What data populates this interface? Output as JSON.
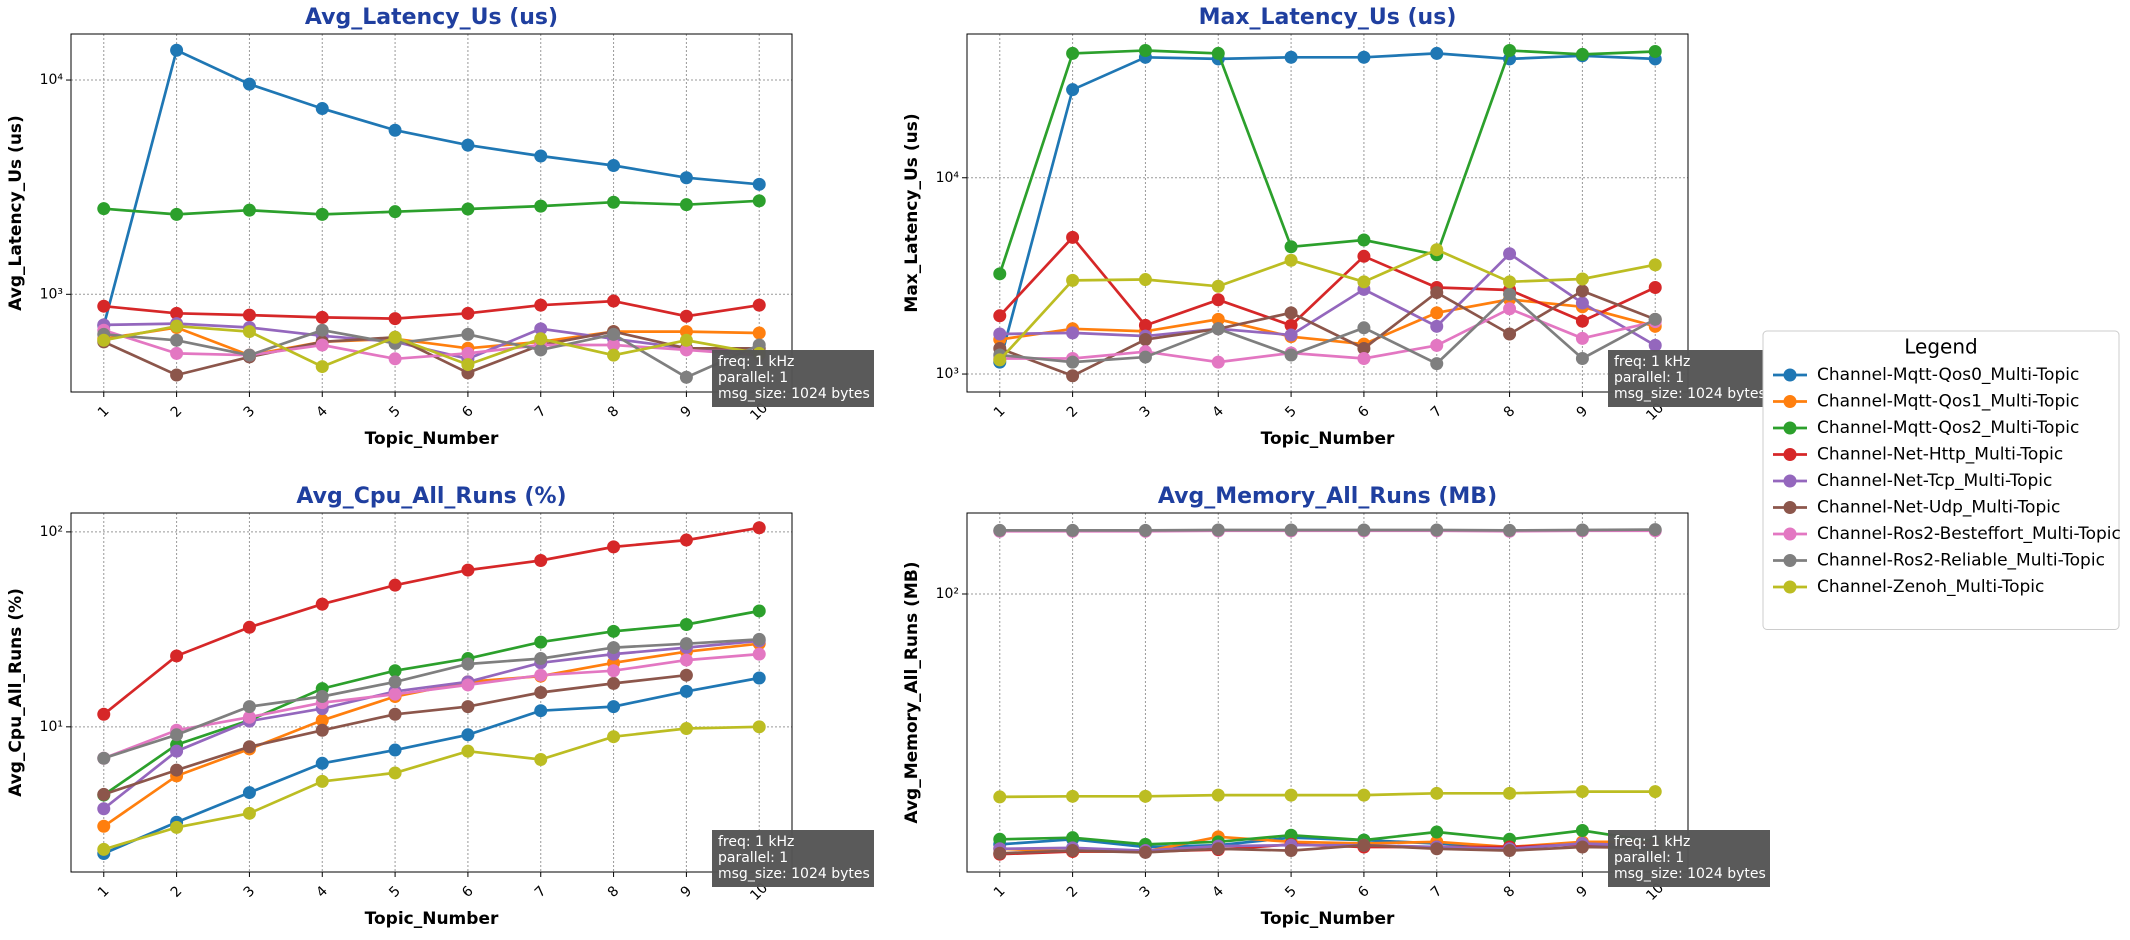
{
  "legend": {
    "title": "Legend",
    "position": "right"
  },
  "chart_data": [
    {
      "type": "line",
      "title": "Avg_Latency_Us  (us)",
      "x_label": "Topic_Number",
      "y_label": "Avg_Latency_Us (us)",
      "categories": [
        "1",
        "2",
        "3",
        "4",
        "5",
        "6",
        "7",
        "8",
        "9",
        "10"
      ],
      "log_y": true,
      "grid": true,
      "ylim": [
        350,
        16400
      ],
      "yticks": [
        {
          "value": 1000,
          "label": "10³"
        },
        {
          "value": 10000,
          "label": "10⁴"
        }
      ],
      "annotation": [
        "freq: 1 kHz",
        "parallel: 1",
        "msg_size: 1024 bytes"
      ],
      "series": [
        {
          "name": "Channel-Mqtt-Qos0_Multi-Topic",
          "color": "#1f77b4",
          "values": [
            715,
            13770,
            9570,
            7360,
            5830,
            4970,
            4420,
            3990,
            3500,
            3260
          ]
        },
        {
          "name": "Channel-Mqtt-Qos1_Multi-Topic",
          "color": "#ff7f0e",
          "values": [
            620,
            700,
            520,
            600,
            620,
            560,
            600,
            670,
            670,
            660
          ]
        },
        {
          "name": "Channel-Mqtt-Qos2_Multi-Topic",
          "color": "#2ca02c",
          "values": [
            2510,
            2360,
            2470,
            2360,
            2430,
            2500,
            2580,
            2690,
            2620,
            2730
          ]
        },
        {
          "name": "Channel-Net-Http_Multi-Topic",
          "color": "#d62728",
          "values": [
            880,
            815,
            800,
            780,
            770,
            815,
            890,
            930,
            790,
            890
          ]
        },
        {
          "name": "Channel-Net-Tcp_Multi-Topic",
          "color": "#9467bd",
          "values": [
            720,
            730,
            700,
            640,
            600,
            500,
            690,
            620,
            560,
            540
          ]
        },
        {
          "name": "Channel-Net-Udp_Multi-Topic",
          "color": "#8c564b",
          "values": [
            600,
            420,
            510,
            600,
            630,
            430,
            580,
            670,
            560,
            560
          ]
        },
        {
          "name": "Channel-Ros2-Besteffort_Multi-Topic",
          "color": "#e377c2",
          "values": [
            680,
            530,
            520,
            580,
            500,
            530,
            580,
            580,
            550,
            520
          ]
        },
        {
          "name": "Channel-Ros2-Reliable_Multi-Topic",
          "color": "#7f7f7f",
          "values": [
            650,
            610,
            520,
            680,
            590,
            650,
            550,
            650,
            410,
            580
          ]
        },
        {
          "name": "Channel-Zenoh_Multi-Topic",
          "color": "#bcbd22",
          "values": [
            610,
            710,
            670,
            460,
            630,
            470,
            620,
            520,
            610,
            530
          ]
        }
      ]
    },
    {
      "type": "line",
      "title": "Max_Latency_Us  (us)",
      "x_label": "Topic_Number",
      "y_label": "Max_Latency_Us (us)",
      "categories": [
        "1",
        "2",
        "3",
        "4",
        "5",
        "6",
        "7",
        "8",
        "9",
        "10"
      ],
      "log_y": true,
      "grid": true,
      "ylim": [
        810,
        54000
      ],
      "yticks": [
        {
          "value": 1000,
          "label": "10³"
        },
        {
          "value": 10000,
          "label": "10⁴"
        }
      ],
      "annotation": [
        "freq: 1 kHz",
        "parallel: 1",
        "msg_size: 1024 bytes"
      ],
      "series": [
        {
          "name": "Channel-Mqtt-Qos0_Multi-Topic",
          "color": "#1f77b4",
          "values": [
            1150,
            28100,
            41100,
            40300,
            41100,
            41100,
            43000,
            40300,
            41800,
            40300
          ]
        },
        {
          "name": "Channel-Mqtt-Qos1_Multi-Topic",
          "color": "#ff7f0e",
          "values": [
            1500,
            1700,
            1650,
            1900,
            1550,
            1420,
            2050,
            2400,
            2200,
            1750
          ]
        },
        {
          "name": "Channel-Mqtt-Qos2_Multi-Topic",
          "color": "#2ca02c",
          "values": [
            3240,
            43000,
            44500,
            43000,
            4450,
            4820,
            4050,
            44500,
            42500,
            44000
          ]
        },
        {
          "name": "Channel-Net-Http_Multi-Topic",
          "color": "#d62728",
          "values": [
            1980,
            4970,
            1770,
            2390,
            1770,
            3980,
            2760,
            2680,
            1860,
            2760
          ]
        },
        {
          "name": "Channel-Net-Tcp_Multi-Topic",
          "color": "#9467bd",
          "values": [
            1600,
            1620,
            1560,
            1700,
            1580,
            2700,
            1750,
            4100,
            2300,
            1400
          ]
        },
        {
          "name": "Channel-Net-Udp_Multi-Topic",
          "color": "#8c564b",
          "values": [
            1350,
            980,
            1500,
            1700,
            2050,
            1350,
            2600,
            1600,
            2650,
            1900
          ]
        },
        {
          "name": "Channel-Ros2-Besteffort_Multi-Topic",
          "color": "#e377c2",
          "values": [
            1200,
            1200,
            1300,
            1150,
            1280,
            1200,
            1400,
            2150,
            1520,
            1850
          ]
        },
        {
          "name": "Channel-Ros2-Reliable_Multi-Topic",
          "color": "#7f7f7f",
          "values": [
            1250,
            1150,
            1220,
            1700,
            1250,
            1720,
            1130,
            2550,
            1200,
            1900
          ]
        },
        {
          "name": "Channel-Zenoh_Multi-Topic",
          "color": "#bcbd22",
          "values": [
            1180,
            3000,
            3030,
            2800,
            3800,
            2950,
            4300,
            2950,
            3050,
            3600
          ]
        }
      ]
    },
    {
      "type": "line",
      "title": "Avg_Cpu_All_Runs  (%)",
      "x_label": "Topic_Number",
      "y_label": "Avg_Cpu_All_Runs (%)",
      "categories": [
        "1",
        "2",
        "3",
        "4",
        "5",
        "6",
        "7",
        "8",
        "9",
        "10"
      ],
      "log_y": true,
      "grid": true,
      "ylim": [
        1.8,
        125
      ],
      "yticks": [
        {
          "value": 10,
          "label": "10¹"
        },
        {
          "value": 100,
          "label": "10²"
        }
      ],
      "annotation": [
        "freq: 1 kHz",
        "parallel: 1",
        "msg_size: 1024 bytes"
      ],
      "series": [
        {
          "name": "Channel-Mqtt-Qos0_Multi-Topic",
          "color": "#1f77b4",
          "values": [
            2.24,
            3.24,
            4.6,
            6.5,
            7.6,
            9.1,
            12.1,
            12.7,
            15.2,
            17.8
          ]
        },
        {
          "name": "Channel-Mqtt-Qos1_Multi-Topic",
          "color": "#ff7f0e",
          "values": [
            3.09,
            5.6,
            7.7,
            10.8,
            14.3,
            17,
            18.2,
            21.3,
            24.3,
            26.7
          ]
        },
        {
          "name": "Channel-Mqtt-Qos2_Multi-Topic",
          "color": "#2ca02c",
          "values": [
            4.47,
            8.1,
            10.8,
            15.7,
            19.4,
            22.4,
            27.2,
            30.9,
            33.5,
            39.3
          ]
        },
        {
          "name": "Channel-Net-Http_Multi-Topic",
          "color": "#d62728",
          "values": [
            11.6,
            23.1,
            32.4,
            42.6,
            53.3,
            63.7,
            71.3,
            83.8,
            90.8,
            105
          ]
        },
        {
          "name": "Channel-Net-Tcp_Multi-Topic",
          "color": "#9467bd",
          "values": [
            3.8,
            7.5,
            10.7,
            12.4,
            15.2,
            17,
            21.3,
            23.6,
            25.5,
            27.6
          ]
        },
        {
          "name": "Channel-Net-Udp_Multi-Topic",
          "color": "#8c564b",
          "values": [
            4.5,
            6.0,
            7.9,
            9.6,
            11.6,
            12.7,
            15,
            16.7,
            18.4,
            null
          ]
        },
        {
          "name": "Channel-Ros2-Besteffort_Multi-Topic",
          "color": "#e377c2",
          "values": [
            6.9,
            9.6,
            11.2,
            13.3,
            14.7,
            16.4,
            18.4,
            19.4,
            22,
            23.6
          ]
        },
        {
          "name": "Channel-Ros2-Reliable_Multi-Topic",
          "color": "#7f7f7f",
          "values": [
            6.9,
            9.1,
            12.7,
            14.3,
            17,
            21,
            22.4,
            25.5,
            26.7,
            28.1
          ]
        },
        {
          "name": "Channel-Zenoh_Multi-Topic",
          "color": "#bcbd22",
          "values": [
            2.35,
            3.05,
            3.6,
            5.25,
            5.8,
            7.5,
            6.8,
            8.9,
            9.8,
            10
          ]
        }
      ]
    },
    {
      "type": "line",
      "title": "Avg_Memory_All_Runs  (MB)",
      "x_label": "Topic_Number",
      "y_label": "Avg_Memory_All_Runs (MB)",
      "categories": [
        "1",
        "2",
        "3",
        "4",
        "5",
        "6",
        "7",
        "8",
        "9",
        "10"
      ],
      "log_y": true,
      "grid": true,
      "ylim": [
        12.8,
        182
      ],
      "yticks": [
        {
          "value": 100,
          "label": "10²"
        }
      ],
      "annotation": [
        "freq: 1 kHz",
        "parallel: 1",
        "msg_size: 1024 bytes"
      ],
      "series": [
        {
          "name": "Channel-Mqtt-Qos0_Multi-Topic",
          "color": "#1f77b4",
          "values": [
            15.7,
            16.3,
            15.4,
            15.6,
            16.5,
            16.2,
            15.8,
            15.4,
            15.7,
            15.1
          ]
        },
        {
          "name": "Channel-Mqtt-Qos1_Multi-Topic",
          "color": "#ff7f0e",
          "values": [
            15.2,
            14.9,
            14.9,
            16.6,
            16.0,
            15.8,
            16.0,
            15.4,
            16.0,
            16.0
          ]
        },
        {
          "name": "Channel-Mqtt-Qos2_Multi-Topic",
          "color": "#2ca02c",
          "values": [
            16.3,
            16.5,
            15.7,
            16.0,
            16.8,
            16.2,
            17.2,
            16.3,
            17.4,
            16.0
          ]
        },
        {
          "name": "Channel-Net-Http_Multi-Topic",
          "color": "#d62728",
          "values": [
            14.6,
            14.9,
            14.9,
            15.1,
            15.7,
            15.4,
            15.4,
            15.4,
            15.7,
            15.7
          ]
        },
        {
          "name": "Channel-Net-Tcp_Multi-Topic",
          "color": "#9467bd",
          "values": [
            15.2,
            15.3,
            15.0,
            15.5,
            15.6,
            15.6,
            15.4,
            15.2,
            15.8,
            15.5
          ]
        },
        {
          "name": "Channel-Net-Udp_Multi-Topic",
          "color": "#8c564b",
          "values": [
            14.7,
            15.0,
            14.8,
            15.2,
            15.0,
            15.6,
            15.2,
            15.0,
            15.4,
            15.3
          ]
        },
        {
          "name": "Channel-Ros2-Besteffort_Multi-Topic",
          "color": "#e377c2",
          "values": [
            159,
            159,
            159,
            159.5,
            159.5,
            159.5,
            159.5,
            159,
            159.5,
            159.5
          ]
        },
        {
          "name": "Channel-Ros2-Reliable_Multi-Topic",
          "color": "#7f7f7f",
          "values": [
            160,
            160,
            160,
            160.5,
            160.5,
            160.5,
            160.5,
            160,
            160.5,
            161
          ]
        },
        {
          "name": "Channel-Zenoh_Multi-Topic",
          "color": "#bcbd22",
          "values": [
            22.3,
            22.4,
            22.4,
            22.6,
            22.6,
            22.6,
            22.9,
            22.9,
            23.2,
            23.2
          ]
        }
      ]
    }
  ]
}
